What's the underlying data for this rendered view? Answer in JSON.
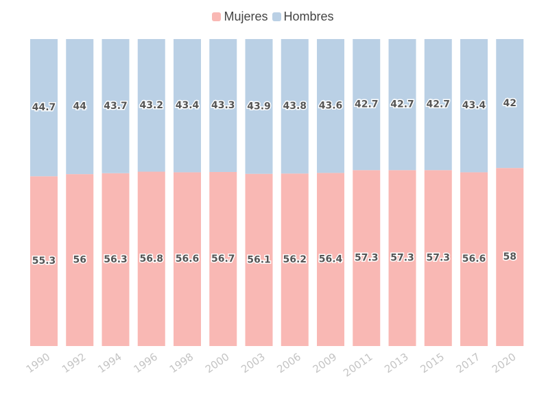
{
  "chart_data": {
    "type": "bar",
    "stacked": true,
    "categories": [
      "1990",
      "1992",
      "1994",
      "1996",
      "1998",
      "2000",
      "2003",
      "2006",
      "2009",
      "20011",
      "2013",
      "2015",
      "2017",
      "2020"
    ],
    "series": [
      {
        "name": "Mujeres",
        "color": "#f9b8b4",
        "values": [
          55.3,
          56,
          56.3,
          56.8,
          56.6,
          56.7,
          56.1,
          56.2,
          56.4,
          57.3,
          57.3,
          57.3,
          56.6,
          58
        ],
        "labels": [
          "55.3",
          "56",
          "56.3",
          "56.8",
          "56.6",
          "56.7",
          "56.1",
          "56.2",
          "56.4",
          "57.3",
          "57.3",
          "57.3",
          "56.6",
          "58"
        ]
      },
      {
        "name": "Hombres",
        "color": "#bad0e5",
        "values": [
          44.7,
          44,
          43.7,
          43.2,
          43.4,
          43.3,
          43.9,
          43.8,
          43.6,
          42.7,
          42.7,
          42.7,
          43.4,
          42
        ],
        "labels": [
          "44.7",
          "44",
          "43.7",
          "43.2",
          "43.4",
          "43.3",
          "43.9",
          "43.8",
          "43.6",
          "42.7",
          "42.7",
          "42.7",
          "43.4",
          "42"
        ]
      }
    ],
    "ylim": [
      0,
      100
    ],
    "legend_position": "top-center",
    "grid": false
  }
}
